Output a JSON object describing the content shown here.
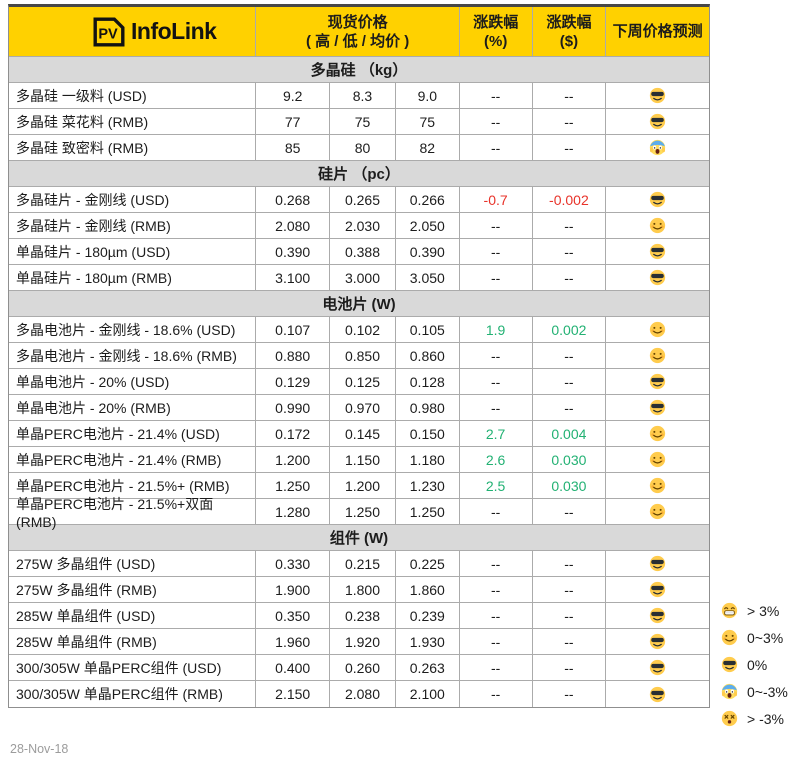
{
  "table": {
    "logo_pv": "PV",
    "logo_text": "InfoLink",
    "columns": {
      "price": {
        "line1": "现货价格",
        "line2": "( 高 / 低 / 均价 )"
      },
      "change_pct": {
        "line1": "涨跌幅",
        "line2": "(%)"
      },
      "change_usd": {
        "line1": "涨跌幅",
        "line2": "($)"
      },
      "forecast": {
        "line1": "下周价格预测"
      }
    }
  },
  "sections": [
    {
      "title": "多晶硅 （kg）",
      "rows": [
        {
          "name": "多晶硅 一级料 (USD)",
          "high": "9.2",
          "low": "8.3",
          "avg": "9.0",
          "pct": "--",
          "chg": "--",
          "trend": "flat",
          "emoji": "cool"
        },
        {
          "name": "多晶硅 菜花料 (RMB)",
          "high": "77",
          "low": "75",
          "avg": "75",
          "pct": "--",
          "chg": "--",
          "trend": "flat",
          "emoji": "cool"
        },
        {
          "name": "多晶硅 致密料 (RMB)",
          "high": "85",
          "low": "80",
          "avg": "82",
          "pct": "--",
          "chg": "--",
          "trend": "flat",
          "emoji": "scream"
        }
      ]
    },
    {
      "title": "硅片 （pc）",
      "rows": [
        {
          "name": "多晶硅片 - 金刚线 (USD)",
          "high": "0.268",
          "low": "0.265",
          "avg": "0.266",
          "pct": "-0.7",
          "chg": "-0.002",
          "trend": "down",
          "emoji": "cool"
        },
        {
          "name": "多晶硅片 - 金刚线 (RMB)",
          "high": "2.080",
          "low": "2.030",
          "avg": "2.050",
          "pct": "--",
          "chg": "--",
          "trend": "flat",
          "emoji": "smile"
        },
        {
          "name": "单晶硅片 - 180µm (USD)",
          "high": "0.390",
          "low": "0.388",
          "avg": "0.390",
          "pct": "--",
          "chg": "--",
          "trend": "flat",
          "emoji": "cool"
        },
        {
          "name": "单晶硅片 - 180µm (RMB)",
          "high": "3.100",
          "low": "3.000",
          "avg": "3.050",
          "pct": "--",
          "chg": "--",
          "trend": "flat",
          "emoji": "cool"
        }
      ]
    },
    {
      "title": "电池片 (W)",
      "rows": [
        {
          "name": "多晶电池片 - 金刚线 - 18.6% (USD)",
          "high": "0.107",
          "low": "0.102",
          "avg": "0.105",
          "pct": "1.9",
          "chg": "0.002",
          "trend": "up",
          "emoji": "smile"
        },
        {
          "name": "多晶电池片 - 金刚线 - 18.6% (RMB)",
          "high": "0.880",
          "low": "0.850",
          "avg": "0.860",
          "pct": "--",
          "chg": "--",
          "trend": "flat",
          "emoji": "smile"
        },
        {
          "name": "单晶电池片 - 20% (USD)",
          "high": "0.129",
          "low": "0.125",
          "avg": "0.128",
          "pct": "--",
          "chg": "--",
          "trend": "flat",
          "emoji": "cool"
        },
        {
          "name": "单晶电池片 - 20% (RMB)",
          "high": "0.990",
          "low": "0.970",
          "avg": "0.980",
          "pct": "--",
          "chg": "--",
          "trend": "flat",
          "emoji": "cool"
        },
        {
          "name": "单晶PERC电池片 - 21.4% (USD)",
          "high": "0.172",
          "low": "0.145",
          "avg": "0.150",
          "pct": "2.7",
          "chg": "0.004",
          "trend": "up",
          "emoji": "smile"
        },
        {
          "name": "单晶PERC电池片 - 21.4% (RMB)",
          "high": "1.200",
          "low": "1.150",
          "avg": "1.180",
          "pct": "2.6",
          "chg": "0.030",
          "trend": "up",
          "emoji": "smile"
        },
        {
          "name": "单晶PERC电池片 - 21.5%+ (RMB)",
          "high": "1.250",
          "low": "1.200",
          "avg": "1.230",
          "pct": "2.5",
          "chg": "0.030",
          "trend": "up",
          "emoji": "smile"
        },
        {
          "name": "单晶PERC电池片 - 21.5%+双面 (RMB)",
          "high": "1.280",
          "low": "1.250",
          "avg": "1.250",
          "pct": "--",
          "chg": "--",
          "trend": "flat",
          "emoji": "smile"
        }
      ]
    },
    {
      "title": "组件 (W)",
      "rows": [
        {
          "name": "275W 多晶组件 (USD)",
          "high": "0.330",
          "low": "0.215",
          "avg": "0.225",
          "pct": "--",
          "chg": "--",
          "trend": "flat",
          "emoji": "cool"
        },
        {
          "name": "275W 多晶组件 (RMB)",
          "high": "1.900",
          "low": "1.800",
          "avg": "1.860",
          "pct": "--",
          "chg": "--",
          "trend": "flat",
          "emoji": "cool"
        },
        {
          "name": "285W 单晶组件 (USD)",
          "high": "0.350",
          "low": "0.238",
          "avg": "0.239",
          "pct": "--",
          "chg": "--",
          "trend": "flat",
          "emoji": "cool"
        },
        {
          "name": "285W 单晶组件 (RMB)",
          "high": "1.960",
          "low": "1.920",
          "avg": "1.930",
          "pct": "--",
          "chg": "--",
          "trend": "flat",
          "emoji": "cool"
        },
        {
          "name": "300/305W 单晶PERC组件 (USD)",
          "high": "0.400",
          "low": "0.260",
          "avg": "0.263",
          "pct": "--",
          "chg": "--",
          "trend": "flat",
          "emoji": "cool"
        },
        {
          "name": "300/305W 单晶PERC组件 (RMB)",
          "high": "2.150",
          "low": "2.080",
          "avg": "2.100",
          "pct": "--",
          "chg": "--",
          "trend": "flat",
          "emoji": "cool"
        }
      ]
    }
  ],
  "legend": [
    {
      "emoji": "grin",
      "label": "> 3%"
    },
    {
      "emoji": "smile",
      "label": "0~3%"
    },
    {
      "emoji": "cool",
      "label": "0%"
    },
    {
      "emoji": "scream",
      "label": "0~-3%"
    },
    {
      "emoji": "dizzy",
      "label": "> -3%"
    }
  ],
  "footer": {
    "date": "28-Nov-18"
  },
  "colors": {
    "header_bg": "#FFD100",
    "section_bg": "#D9D9D9",
    "up": "#22B173",
    "down": "#E8332A"
  }
}
